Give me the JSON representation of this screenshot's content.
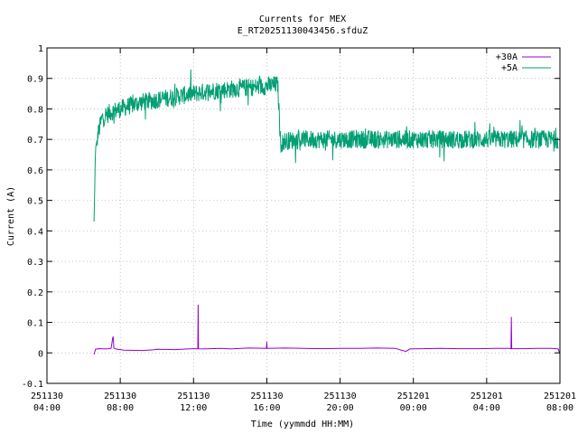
{
  "chart_data": {
    "type": "line",
    "title": "Currents for MEX",
    "subtitle": "E_RT20251130043456.sfduZ",
    "xlabel": "Time (yymmdd HH:MM)",
    "ylabel": "Current (A)",
    "x_unit": "hours since 251130 04:00",
    "xlim": [
      0,
      28
    ],
    "ylim": [
      -0.1,
      1
    ],
    "y_ticks": [
      "-0.1",
      "0",
      "0.1",
      "0.2",
      "0.3",
      "0.4",
      "0.5",
      "0.6",
      "0.7",
      "0.8",
      "0.9",
      "1"
    ],
    "x_ticks": [
      {
        "x": 0,
        "date": "251130",
        "time": "04:00"
      },
      {
        "x": 4,
        "date": "251130",
        "time": "08:00"
      },
      {
        "x": 8,
        "date": "251130",
        "time": "12:00"
      },
      {
        "x": 12,
        "date": "251130",
        "time": "16:00"
      },
      {
        "x": 16,
        "date": "251130",
        "time": "20:00"
      },
      {
        "x": 20,
        "date": "251201",
        "time": "00:00"
      },
      {
        "x": 24,
        "date": "251201",
        "time": "04:00"
      },
      {
        "x": 28,
        "date": "251201",
        "time": "08:00"
      }
    ],
    "grid": true,
    "legend_position": "top-right",
    "series": [
      {
        "name": "+30A",
        "color": "#9400d3",
        "x": [
          2.57,
          2.65,
          2.8,
          3.3,
          3.5,
          3.6,
          3.65,
          3.75,
          4.2,
          5.2,
          5.8,
          6.0,
          7.0,
          8.0,
          8.5,
          9.5,
          10.0,
          11.0,
          12.0,
          13.0,
          14.0,
          15.0,
          16.0,
          17.0,
          18.0,
          19.0,
          19.45,
          19.6,
          19.8,
          20.5,
          21.5,
          22.5,
          23.5,
          24.5,
          25.2,
          25.35,
          26.0,
          26.8,
          27.5,
          27.9,
          28.0
        ],
        "values": [
          -0.005,
          0.012,
          0.014,
          0.013,
          0.015,
          0.052,
          0.016,
          0.013,
          0.009,
          0.008,
          0.01,
          0.012,
          0.011,
          0.014,
          0.013,
          0.015,
          0.013,
          0.016,
          0.015,
          0.016,
          0.015,
          0.014,
          0.015,
          0.015,
          0.016,
          0.015,
          0.007,
          0.005,
          0.013,
          0.014,
          0.015,
          0.014,
          0.014,
          0.015,
          0.015,
          0.014,
          0.014,
          0.015,
          0.015,
          0.013,
          -0.003
        ],
        "spikes": [
          [
            3.6,
            0.052
          ],
          [
            8.25,
            0.158
          ],
          [
            12.0,
            0.036
          ],
          [
            25.35,
            0.118
          ]
        ]
      },
      {
        "name": "+5A",
        "color": "#009e73",
        "x": [
          2.57,
          2.65,
          2.8,
          3.0,
          3.5,
          4.0,
          5.0,
          6.0,
          7.0,
          8.0,
          9.0,
          10.0,
          11.0,
          12.0,
          12.6,
          12.75,
          13.0,
          14.0,
          15.0,
          16.0,
          17.0,
          18.0,
          19.0,
          20.0,
          21.0,
          22.0,
          23.0,
          24.0,
          25.0,
          26.0,
          27.0,
          27.9
        ],
        "values": [
          0.43,
          0.67,
          0.72,
          0.77,
          0.79,
          0.8,
          0.82,
          0.83,
          0.84,
          0.85,
          0.86,
          0.865,
          0.87,
          0.875,
          0.88,
          0.685,
          0.695,
          0.7,
          0.7,
          0.7,
          0.7,
          0.7,
          0.7,
          0.7,
          0.7,
          0.7,
          0.7,
          0.7,
          0.7,
          0.7,
          0.7,
          0.7
        ],
        "noise": 0.03
      }
    ]
  }
}
